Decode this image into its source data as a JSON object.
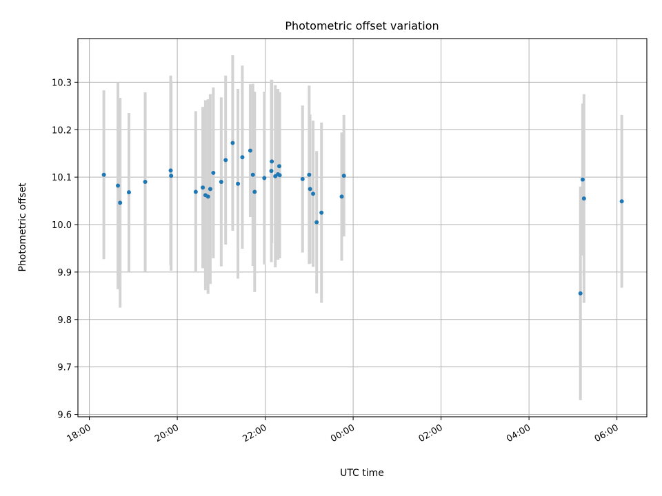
{
  "chart_data": {
    "type": "scatter",
    "title": "Photometric offset variation",
    "xlabel": "UTC time",
    "ylabel": "Photometric offset",
    "x_unit": "hours",
    "x_ticks": [
      {
        "value": 18,
        "label": "18:00"
      },
      {
        "value": 20,
        "label": "20:00"
      },
      {
        "value": 22,
        "label": "22:00"
      },
      {
        "value": 24,
        "label": "00:00"
      },
      {
        "value": 26,
        "label": "02:00"
      },
      {
        "value": 28,
        "label": "04:00"
      },
      {
        "value": 30,
        "label": "06:00"
      }
    ],
    "y_ticks": [
      {
        "value": 9.6,
        "label": "9.6"
      },
      {
        "value": 9.7,
        "label": "9.7"
      },
      {
        "value": 9.8,
        "label": "9.8"
      },
      {
        "value": 9.9,
        "label": "9.9"
      },
      {
        "value": 10.0,
        "label": "10.0"
      },
      {
        "value": 10.1,
        "label": "10.1"
      },
      {
        "value": 10.2,
        "label": "10.2"
      },
      {
        "value": 10.3,
        "label": "10.3"
      }
    ],
    "xlim": [
      17.74,
      30.68
    ],
    "ylim": [
      9.595,
      10.392
    ],
    "grid": true,
    "marker_color": "#1f77b4",
    "errorbar_color": "#d3d3d3",
    "points": [
      {
        "x": 18.33,
        "y": 10.105,
        "err": 0.178
      },
      {
        "x": 18.65,
        "y": 10.082,
        "err": 0.218
      },
      {
        "x": 18.7,
        "y": 10.046,
        "err": 0.221
      },
      {
        "x": 18.9,
        "y": 10.068,
        "err": 0.167
      },
      {
        "x": 19.27,
        "y": 10.09,
        "err": 0.189
      },
      {
        "x": 19.85,
        "y": 10.114,
        "err": 0.2
      },
      {
        "x": 19.86,
        "y": 10.103,
        "err": 0.2
      },
      {
        "x": 20.42,
        "y": 10.069,
        "err": 0.17
      },
      {
        "x": 20.58,
        "y": 10.078,
        "err": 0.17
      },
      {
        "x": 20.64,
        "y": 10.062,
        "err": 0.2
      },
      {
        "x": 20.7,
        "y": 10.059,
        "err": 0.205
      },
      {
        "x": 20.75,
        "y": 10.075,
        "err": 0.2
      },
      {
        "x": 20.82,
        "y": 10.109,
        "err": 0.18
      },
      {
        "x": 21.0,
        "y": 10.09,
        "err": 0.178
      },
      {
        "x": 21.1,
        "y": 10.136,
        "err": 0.178
      },
      {
        "x": 21.26,
        "y": 10.172,
        "err": 0.185
      },
      {
        "x": 21.38,
        "y": 10.086,
        "err": 0.2
      },
      {
        "x": 21.48,
        "y": 10.142,
        "err": 0.193
      },
      {
        "x": 21.66,
        "y": 10.156,
        "err": 0.14
      },
      {
        "x": 21.72,
        "y": 10.105,
        "err": 0.192
      },
      {
        "x": 21.76,
        "y": 10.069,
        "err": 0.211
      },
      {
        "x": 21.98,
        "y": 10.098,
        "err": 0.182
      },
      {
        "x": 22.14,
        "y": 10.113,
        "err": 0.192
      },
      {
        "x": 22.15,
        "y": 10.133,
        "err": 0.172
      },
      {
        "x": 22.23,
        "y": 10.102,
        "err": 0.192
      },
      {
        "x": 22.29,
        "y": 10.106,
        "err": 0.18
      },
      {
        "x": 22.32,
        "y": 10.123,
        "err": 0.153
      },
      {
        "x": 22.33,
        "y": 10.104,
        "err": 0.175
      },
      {
        "x": 22.85,
        "y": 10.096,
        "err": 0.155
      },
      {
        "x": 23.0,
        "y": 10.105,
        "err": 0.188
      },
      {
        "x": 23.02,
        "y": 10.075,
        "err": 0.157
      },
      {
        "x": 23.09,
        "y": 10.065,
        "err": 0.154
      },
      {
        "x": 23.17,
        "y": 10.005,
        "err": 0.15
      },
      {
        "x": 23.28,
        "y": 10.025,
        "err": 0.19
      },
      {
        "x": 23.74,
        "y": 10.059,
        "err": 0.135
      },
      {
        "x": 23.79,
        "y": 10.103,
        "err": 0.128
      },
      {
        "x": 29.17,
        "y": 9.855,
        "err": 0.225
      },
      {
        "x": 29.22,
        "y": 10.095,
        "err": 0.16
      },
      {
        "x": 29.25,
        "y": 10.055,
        "err": 0.22
      },
      {
        "x": 30.11,
        "y": 10.049,
        "err": 0.182
      }
    ]
  }
}
